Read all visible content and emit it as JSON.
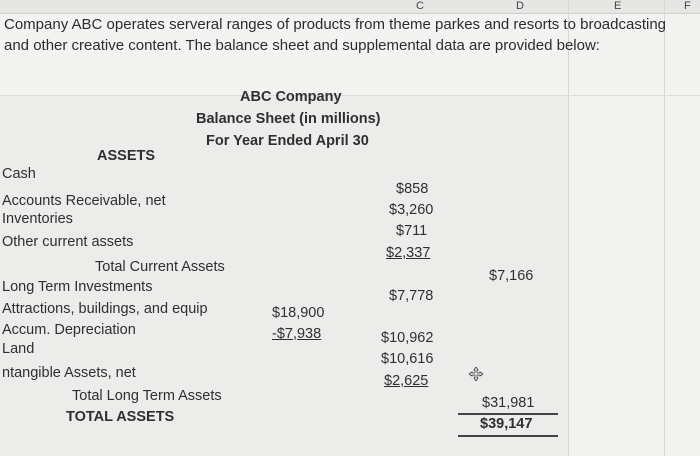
{
  "columns": [
    "C",
    "D",
    "E",
    "F"
  ],
  "intro_text": "Company ABC operates serveral ranges of products from theme parkes and resorts to broadcasting and other creative content. The balance sheet and supplemental data are provided below:",
  "header": {
    "company": "ABC Company",
    "title": "Balance Sheet (in millions)",
    "period": "For Year Ended April 30"
  },
  "assets_heading": "ASSETS",
  "rows": {
    "cash": {
      "label": "Cash",
      "value": "$858"
    },
    "ar": {
      "label": "Accounts Receivable, net",
      "value": "$3,260"
    },
    "inventories": {
      "label": "Inventories",
      "value": "$711"
    },
    "other_current": {
      "label": "Other current assets",
      "value": "$2,337"
    },
    "total_current": {
      "label": "Total Current Assets",
      "value": "$7,166"
    },
    "lt_investments": {
      "label": "Long Term Investments",
      "value": "$7,778"
    },
    "attractions": {
      "label": "Attractions, buildings, and equip",
      "gross": "$18,900"
    },
    "accum_dep": {
      "label": "Accum. Depreciation",
      "gross": "-$7,938",
      "value": "$10,962"
    },
    "land": {
      "label": "Land",
      "value": "$10,616"
    },
    "intangible": {
      "label": "ntangible Assets, net",
      "value": "$2,625"
    },
    "total_lt": {
      "label": "Total Long Term Assets",
      "value": "$31,981"
    },
    "total_assets": {
      "label": "TOTAL ASSETS",
      "value": "$39,147"
    }
  },
  "icons": {
    "cursor": "move-cursor-icon"
  }
}
